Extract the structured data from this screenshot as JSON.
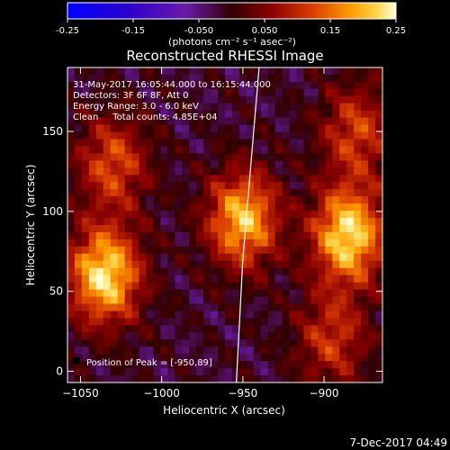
{
  "colorbar": {
    "ticks": [
      "-0.25",
      "-0.15",
      "-0.050",
      "0.050",
      "0.15",
      "0.25"
    ],
    "tick_values": [
      -0.25,
      -0.15,
      -0.05,
      0.05,
      0.15,
      0.25
    ],
    "range": [
      -0.25,
      0.25
    ],
    "unit_label": "(photons cm⁻² s⁻¹ asec⁻²)"
  },
  "chart_data": {
    "type": "heatmap",
    "title": "Reconstructed RHESSI Image",
    "xlabel": "Heliocentric X (arcsec)",
    "ylabel": "Heliocentric Y (arcsec)",
    "xlim": [
      -1058,
      -864
    ],
    "ylim": [
      -7,
      190
    ],
    "x_ticks": [
      "−1050",
      "−1000",
      "−950",
      "−900"
    ],
    "x_tick_values": [
      -1050,
      -1000,
      -950,
      -900
    ],
    "y_ticks": [
      "0",
      "50",
      "100",
      "150"
    ],
    "y_tick_values": [
      0,
      50,
      100,
      150
    ],
    "annotations": [
      "31-May-2017 16:05:44.000 to 16:15:44.000",
      "Detectors: 3F 6F 8F, Att 0",
      "Energy Range: 3.0 - 6.0 keV",
      "Clean     Total counts: 4.85E+04"
    ],
    "peak_label": "Position of Peak = [-950,89]",
    "peak_position": [
      -950,
      89
    ],
    "sources": [
      {
        "x": -1035,
        "y": 60,
        "intensity": 0.25
      },
      {
        "x": -1030,
        "y": 130,
        "intensity": 0.14
      },
      {
        "x": -950,
        "y": 95,
        "intensity": 0.22
      },
      {
        "x": -885,
        "y": 85,
        "intensity": 0.25
      },
      {
        "x": -880,
        "y": 150,
        "intensity": 0.13
      },
      {
        "x": -895,
        "y": 20,
        "intensity": 0.12
      }
    ],
    "limb": [
      [
        -940,
        190
      ],
      [
        -950,
        70
      ],
      [
        -954,
        -7
      ]
    ]
  },
  "footer": {
    "date": "7-Dec-2017 04:49"
  }
}
